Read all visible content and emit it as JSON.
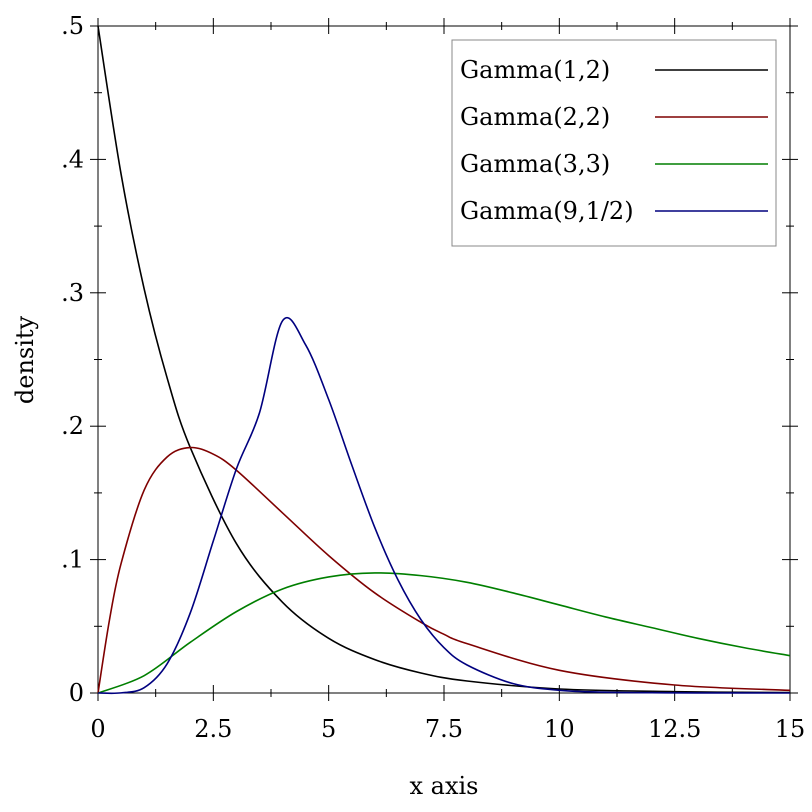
{
  "chart_data": {
    "type": "line",
    "xlabel": "x axis",
    "ylabel": "density",
    "xlim": [
      0,
      15
    ],
    "ylim": [
      0,
      0.5
    ],
    "x_ticks": [
      {
        "value": 0,
        "label": "0"
      },
      {
        "value": 2.5,
        "label": "2.5"
      },
      {
        "value": 5,
        "label": "5"
      },
      {
        "value": 7.5,
        "label": "7.5"
      },
      {
        "value": 10,
        "label": "10"
      },
      {
        "value": 12.5,
        "label": "12.5"
      },
      {
        "value": 15,
        "label": "15"
      }
    ],
    "y_ticks": [
      {
        "value": 0,
        "label": "0"
      },
      {
        "value": 0.1,
        "label": ".1"
      },
      {
        "value": 0.2,
        "label": ".2"
      },
      {
        "value": 0.3,
        "label": ".3"
      },
      {
        "value": 0.4,
        "label": ".4"
      },
      {
        "value": 0.5,
        "label": ".5"
      }
    ],
    "grid": false,
    "legend_position": "top-right",
    "series": [
      {
        "name": "Gamma(1,2)",
        "color": "#000000",
        "x": [
          0,
          0.5,
          1,
          1.5,
          2,
          3,
          4,
          5,
          6,
          7,
          8,
          10,
          12.5,
          15
        ],
        "y": [
          0.5,
          0.389,
          0.303,
          0.236,
          0.184,
          0.112,
          0.068,
          0.041,
          0.025,
          0.015,
          0.009,
          0.003,
          0.001,
          0.0003
        ]
      },
      {
        "name": "Gamma(2,2)",
        "color": "#7f0000",
        "x": [
          0,
          0.25,
          0.5,
          1,
          1.5,
          2,
          2.5,
          3,
          4,
          5,
          6,
          7,
          7.5,
          8,
          10,
          12.5,
          15
        ],
        "y": [
          0,
          0.055,
          0.097,
          0.152,
          0.177,
          0.184,
          0.179,
          0.167,
          0.135,
          0.103,
          0.075,
          0.053,
          0.044,
          0.037,
          0.017,
          0.006,
          0.002
        ]
      },
      {
        "name": "Gamma(3,3)",
        "color": "#007f00",
        "x": [
          0,
          1,
          2,
          3,
          4,
          5,
          6,
          7,
          8,
          9,
          10,
          11,
          12,
          13,
          14,
          15
        ],
        "y": [
          0,
          0.013,
          0.038,
          0.061,
          0.078,
          0.087,
          0.09,
          0.088,
          0.083,
          0.075,
          0.066,
          0.057,
          0.049,
          0.041,
          0.034,
          0.028
        ]
      },
      {
        "name": "Gamma(9,1/2)",
        "color": "#00007f",
        "x": [
          0,
          0.5,
          1,
          1.5,
          2,
          2.5,
          3,
          3.5,
          4,
          4.5,
          5,
          5.5,
          6,
          6.5,
          7,
          7.5,
          8,
          9,
          10,
          11,
          12,
          13,
          15
        ],
        "y": [
          0,
          0.0001,
          0.004,
          0.022,
          0.06,
          0.114,
          0.168,
          0.21,
          0.279,
          0.261,
          0.22,
          0.171,
          0.124,
          0.085,
          0.055,
          0.034,
          0.021,
          0.007,
          0.002,
          0.0006,
          0.0002,
          5e-05,
          3e-06
        ]
      }
    ]
  }
}
